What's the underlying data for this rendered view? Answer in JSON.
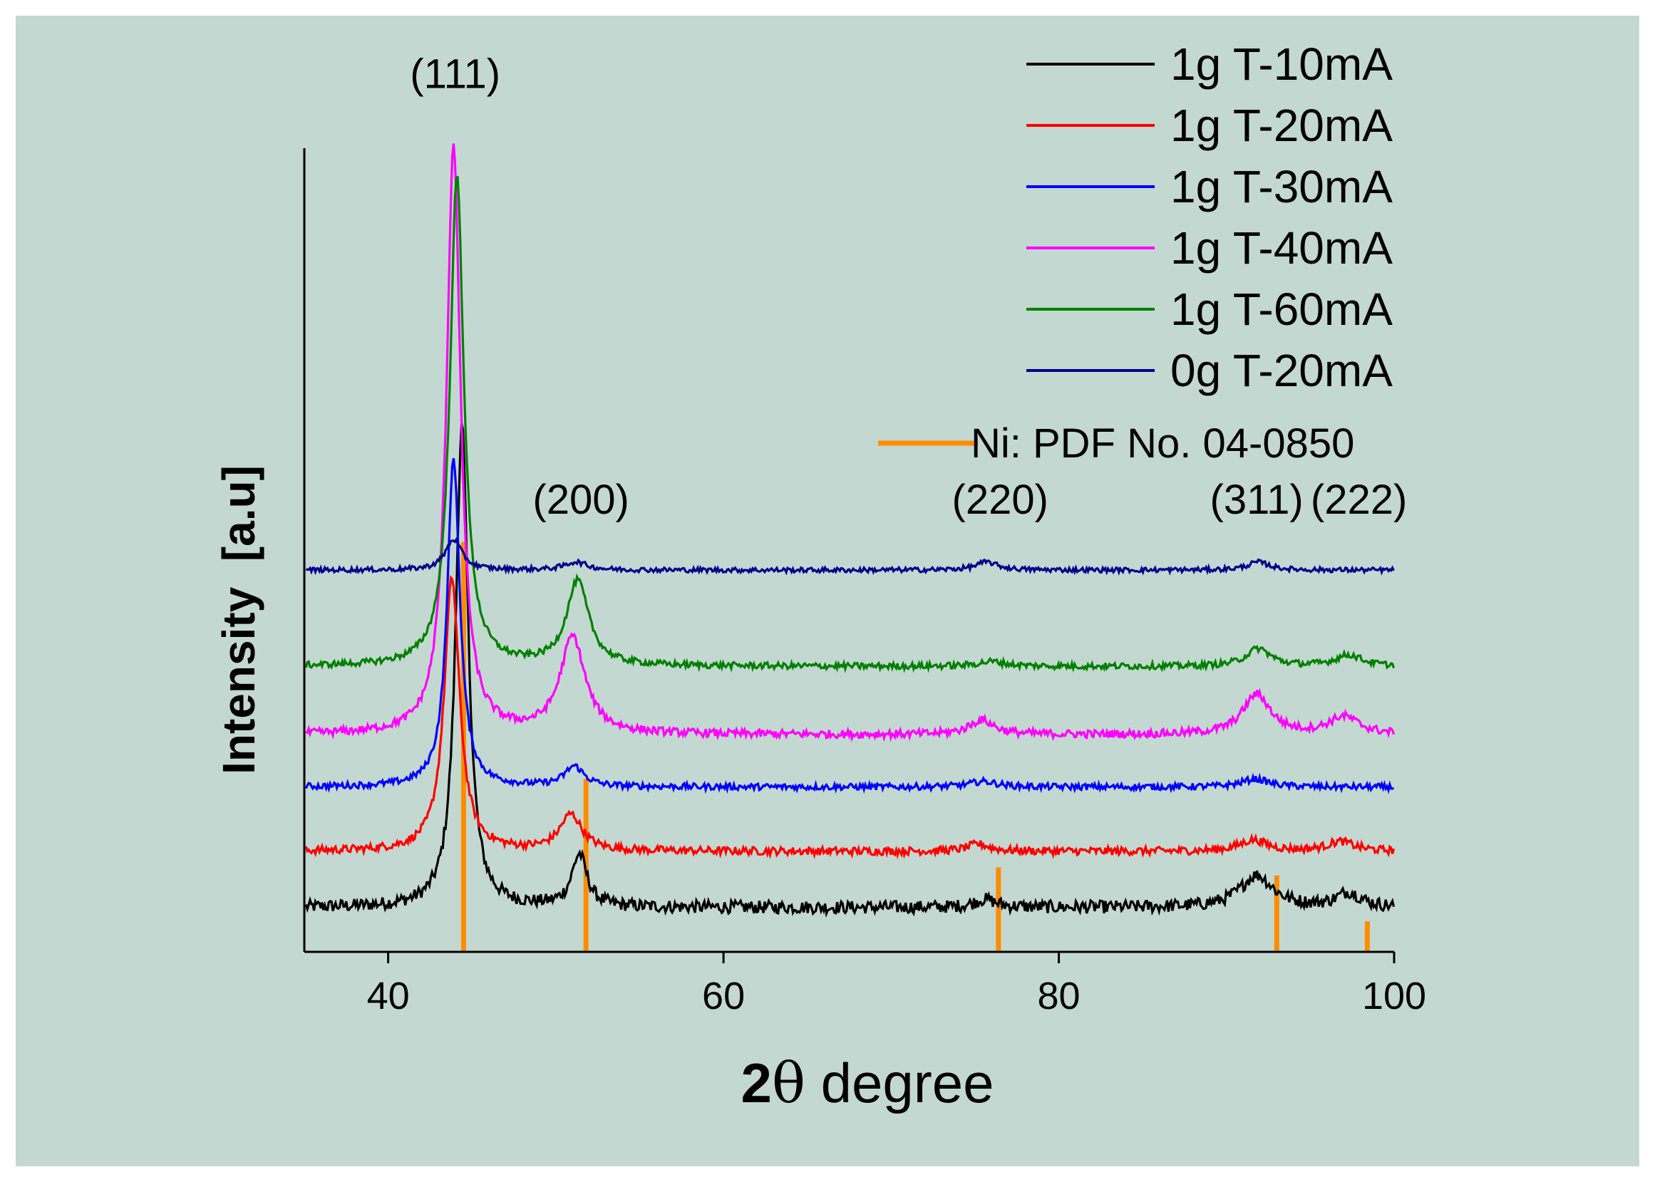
{
  "chart_data": {
    "type": "line",
    "title": "",
    "xlabel_prefix": "2",
    "xlabel_symbol": "θ",
    "xlabel_suffix": " degree",
    "ylabel": "Intensity  [a.u]",
    "xlim": [
      35,
      100
    ],
    "xticks": [
      40,
      60,
      80,
      100
    ],
    "y_units": "offset arbitrary units (0-1000)",
    "ylim": [
      0,
      1000
    ],
    "legend_position": "top-right",
    "grid": false,
    "series": [
      {
        "name": "1g T-10mA",
        "color": "#000000",
        "baseline": 55,
        "noise": 8,
        "peaks": [
          [
            44.4,
            600,
            0.45
          ],
          [
            51.4,
            65,
            0.55
          ],
          [
            75.6,
            10,
            0.8
          ],
          [
            91.8,
            40,
            1.2
          ],
          [
            97.3,
            18,
            0.9
          ]
        ]
      },
      {
        "name": "1g T-20mA",
        "color": "#ff0000",
        "baseline": 125,
        "noise": 5,
        "peaks": [
          [
            43.8,
            340,
            0.55
          ],
          [
            50.9,
            45,
            0.8
          ],
          [
            75.2,
            9,
            0.8
          ],
          [
            91.6,
            14,
            1.0
          ],
          [
            96.8,
            12,
            1.0
          ]
        ]
      },
      {
        "name": "1g T-30mA",
        "color": "#0000ff",
        "baseline": 205,
        "noise": 4,
        "peaks": [
          [
            43.9,
            410,
            0.45
          ],
          [
            51.1,
            25,
            0.7
          ],
          [
            75.5,
            7,
            1.0
          ],
          [
            91.7,
            10,
            1.0
          ]
        ]
      },
      {
        "name": "1g T-40mA",
        "color": "#ff00ff",
        "baseline": 270,
        "noise": 5,
        "peaks": [
          [
            43.9,
            735,
            0.5
          ],
          [
            51.0,
            120,
            0.9
          ],
          [
            75.4,
            18,
            0.9
          ],
          [
            91.8,
            50,
            1.0
          ],
          [
            97.0,
            22,
            1.1
          ]
        ]
      },
      {
        "name": "1g T-60mA",
        "color": "#008000",
        "baseline": 355,
        "noise": 4,
        "peaks": [
          [
            44.1,
            610,
            0.5
          ],
          [
            51.3,
            105,
            0.8
          ],
          [
            76.0,
            6,
            1.0
          ],
          [
            91.9,
            22,
            0.9
          ],
          [
            97.3,
            14,
            1.0
          ]
        ]
      },
      {
        "name": "0g T-20mA",
        "color": "#00008b",
        "baseline": 475,
        "noise": 3,
        "peaks": [
          [
            43.9,
            38,
            0.6
          ],
          [
            51.2,
            10,
            0.8
          ],
          [
            75.7,
            10,
            0.8
          ],
          [
            91.9,
            10,
            0.8
          ]
        ]
      }
    ],
    "reference": {
      "name": "Ni: PDF No. 04-0850",
      "color": "#ff8c00",
      "sticks": [
        [
          44.5,
          510
        ],
        [
          51.8,
          215
        ],
        [
          76.4,
          105
        ],
        [
          93.0,
          95
        ],
        [
          98.4,
          38
        ]
      ]
    },
    "peak_labels": [
      {
        "text": "(111)",
        "x": 44.0,
        "y": 1075
      },
      {
        "text": "(200)",
        "x": 51.5,
        "y": 545
      },
      {
        "text": "(220)",
        "x": 76.5,
        "y": 545
      },
      {
        "text": "(311)",
        "x": 91.8,
        "y": 545
      },
      {
        "text": "(222)",
        "x": 97.9,
        "y": 545
      }
    ]
  }
}
